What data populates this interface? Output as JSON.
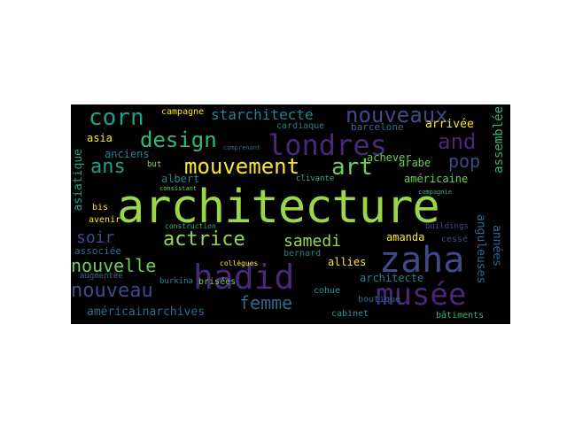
{
  "wordcloud": {
    "background": "#000000",
    "palette": [
      "#9bd64a",
      "#35b779",
      "#1f9e89",
      "#26828e",
      "#31688e",
      "#3e4a89",
      "#482878",
      "#440154",
      "#fde725",
      "#6ece58"
    ],
    "words": [
      {
        "text": "architecture",
        "color": "#9bd64a"
      },
      {
        "text": "zaha",
        "color": "#3e4a89"
      },
      {
        "text": "hadid",
        "color": "#482878"
      },
      {
        "text": "londres",
        "color": "#482878"
      },
      {
        "text": "musée",
        "color": "#482878"
      },
      {
        "text": "mouvement",
        "color": "#fde725"
      },
      {
        "text": "design",
        "color": "#35b779"
      },
      {
        "text": "nouveaux",
        "color": "#3e4a89"
      },
      {
        "text": "art",
        "color": "#6ece58"
      },
      {
        "text": "corn",
        "color": "#1f9e89"
      },
      {
        "text": "nouveau",
        "color": "#3e4a89"
      },
      {
        "text": "actrice",
        "color": "#9bd64a"
      },
      {
        "text": "and",
        "color": "#482878"
      },
      {
        "text": "samedi",
        "color": "#9bd64a"
      },
      {
        "text": "nouvelle",
        "color": "#6ece58"
      },
      {
        "text": "femme",
        "color": "#31688e"
      },
      {
        "text": "ans",
        "color": "#1f9e89"
      },
      {
        "text": "pop",
        "color": "#3e4a89"
      },
      {
        "text": "soir",
        "color": "#3e4a89"
      },
      {
        "text": "starchitecte",
        "color": "#26828e"
      },
      {
        "text": "américainarchives",
        "color": "#31688e"
      },
      {
        "text": "arrivée",
        "color": "#fde725"
      },
      {
        "text": "assemblée",
        "color": "#35b779"
      },
      {
        "text": "années",
        "color": "#31688e"
      },
      {
        "text": "anguleuses",
        "color": "#31688e"
      },
      {
        "text": "asiatique",
        "color": "#1f9e89"
      },
      {
        "text": "amanda",
        "color": "#fde725"
      },
      {
        "text": "anciens",
        "color": "#26828e"
      },
      {
        "text": "architecte",
        "color": "#26828e"
      },
      {
        "text": "arabe",
        "color": "#6ece58"
      },
      {
        "text": "achever",
        "color": "#6ece58"
      },
      {
        "text": "albert",
        "color": "#26828e"
      },
      {
        "text": "américaine",
        "color": "#6ece58"
      },
      {
        "text": "associée",
        "color": "#31688e"
      },
      {
        "text": "allies",
        "color": "#fde725"
      },
      {
        "text": "asia",
        "color": "#fde725"
      },
      {
        "text": "barcelone",
        "color": "#31688e"
      },
      {
        "text": "cardiaque",
        "color": "#26828e"
      },
      {
        "text": "campagne",
        "color": "#fde725"
      },
      {
        "text": "bis",
        "color": "#fde725"
      },
      {
        "text": "avenir",
        "color": "#fde725"
      },
      {
        "text": "bernard",
        "color": "#26828e"
      },
      {
        "text": "brisées",
        "color": "#6ece58"
      },
      {
        "text": "augmentée",
        "color": "#31688e"
      },
      {
        "text": "burkina",
        "color": "#26828e"
      },
      {
        "text": "cohue",
        "color": "#1f9e89"
      },
      {
        "text": "boutique",
        "color": "#31688e"
      },
      {
        "text": "cabinet",
        "color": "#1f9e89"
      },
      {
        "text": "bâtiments",
        "color": "#35b779"
      },
      {
        "text": "cessé",
        "color": "#3e4a89"
      },
      {
        "text": "buildings",
        "color": "#3e4a89"
      },
      {
        "text": "clivante",
        "color": "#35b779"
      },
      {
        "text": "construction",
        "color": "#35b779"
      },
      {
        "text": "collègues",
        "color": "#fde725"
      },
      {
        "text": "but",
        "color": "#9bd64a"
      },
      {
        "text": "compagnie",
        "color": "#35b779"
      },
      {
        "text": "consistant",
        "color": "#6ece58"
      },
      {
        "text": "comprenant",
        "color": "#31688e"
      }
    ]
  }
}
